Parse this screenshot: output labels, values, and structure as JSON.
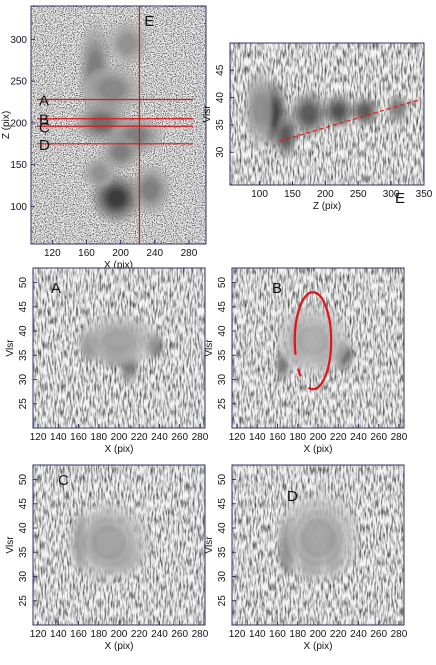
{
  "figure": {
    "panels": [
      {
        "id": "map",
        "type": "heatmap",
        "xlabel": "X (pix)",
        "ylabel": "Z (pix)",
        "xticks": [
          120,
          160,
          200,
          240,
          280
        ],
        "yticks": [
          100,
          150,
          200,
          250,
          300
        ],
        "xlim": [
          95,
          300
        ],
        "ylim": [
          55,
          340
        ],
        "cut_labels": [
          {
            "text": "A",
            "z": 228
          },
          {
            "text": "B",
            "z": 205
          },
          {
            "text": "C",
            "z": 196
          },
          {
            "text": "D",
            "z": 175
          }
        ],
        "vertical_cut": {
          "text": "E",
          "x": 222
        },
        "blobs": [
          {
            "x": 170,
            "y": 265,
            "rx": 16,
            "ry": 55,
            "v": 0.6
          },
          {
            "x": 208,
            "y": 295,
            "rx": 22,
            "ry": 26,
            "v": 0.5
          },
          {
            "x": 190,
            "y": 240,
            "rx": 35,
            "ry": 28,
            "v": 0.55
          },
          {
            "x": 178,
            "y": 200,
            "rx": 30,
            "ry": 22,
            "v": 0.7
          },
          {
            "x": 218,
            "y": 185,
            "rx": 30,
            "ry": 20,
            "v": 0.6
          },
          {
            "x": 200,
            "y": 165,
            "rx": 22,
            "ry": 20,
            "v": 0.6
          },
          {
            "x": 195,
            "y": 110,
            "rx": 28,
            "ry": 28,
            "v": 0.95
          },
          {
            "x": 235,
            "y": 120,
            "rx": 22,
            "ry": 28,
            "v": 0.6
          },
          {
            "x": 175,
            "y": 140,
            "rx": 18,
            "ry": 18,
            "v": 0.5
          }
        ]
      },
      {
        "id": "E",
        "type": "heatmap",
        "label": "E",
        "xlabel": "Z (pix)",
        "ylabel": "Vlsr",
        "xticks": [
          100,
          150,
          200,
          250,
          300,
          350
        ],
        "yticks": [
          30,
          35,
          40,
          45
        ],
        "xlim": [
          55,
          350
        ],
        "ylim": [
          24,
          50
        ],
        "fit_line": {
          "x": [
            130,
            340
          ],
          "y": [
            32,
            39.5
          ]
        },
        "blobs": [
          {
            "x": 120,
            "y": 37,
            "rx": 22,
            "ry": 6,
            "v": 0.95
          },
          {
            "x": 140,
            "y": 33,
            "rx": 15,
            "ry": 4,
            "v": 0.8
          },
          {
            "x": 175,
            "y": 37,
            "rx": 28,
            "ry": 4,
            "v": 0.8
          },
          {
            "x": 220,
            "y": 37.5,
            "rx": 22,
            "ry": 3,
            "v": 0.85
          },
          {
            "x": 260,
            "y": 37.5,
            "rx": 20,
            "ry": 2.5,
            "v": 0.8
          },
          {
            "x": 310,
            "y": 38,
            "rx": 14,
            "ry": 2.5,
            "v": 0.6
          },
          {
            "x": 100,
            "y": 38,
            "rx": 20,
            "ry": 7,
            "v": 0.5
          }
        ]
      },
      {
        "id": "A",
        "type": "heatmap",
        "label": "A",
        "xlabel": "X (pix)",
        "ylabel": "Vlsr",
        "xticks": [
          120,
          140,
          160,
          180,
          200,
          220,
          240,
          260,
          280
        ],
        "yticks": [
          25,
          30,
          35,
          40,
          45,
          50
        ],
        "xlim": [
          115,
          285
        ],
        "ylim": [
          20,
          53
        ],
        "blobs": [
          {
            "x": 172,
            "y": 37,
            "rx": 10,
            "ry": 3,
            "v": 0.9
          },
          {
            "x": 195,
            "y": 36,
            "rx": 14,
            "ry": 3.5,
            "v": 0.75
          },
          {
            "x": 210,
            "y": 33,
            "rx": 8,
            "ry": 4,
            "v": 0.6
          },
          {
            "x": 235,
            "y": 37,
            "rx": 8,
            "ry": 2.5,
            "v": 0.85
          },
          {
            "x": 200,
            "y": 38,
            "rx": 40,
            "ry": 5,
            "v": 0.4
          }
        ]
      },
      {
        "id": "B",
        "type": "heatmap",
        "label": "B",
        "xlabel": "X (pix)",
        "ylabel": "Vlsr",
        "xticks": [
          120,
          140,
          160,
          180,
          200,
          220,
          240,
          260,
          280
        ],
        "yticks": [
          25,
          30,
          35,
          40,
          45,
          50
        ],
        "xlim": [
          115,
          285
        ],
        "ylim": [
          20,
          53
        ],
        "ellipse": {
          "cx": 195,
          "cy": 38,
          "rx": 18,
          "ry": 10
        },
        "blobs": [
          {
            "x": 180,
            "y": 38,
            "rx": 8,
            "ry": 5,
            "v": 0.95
          },
          {
            "x": 205,
            "y": 36,
            "rx": 7,
            "ry": 4,
            "v": 0.7
          },
          {
            "x": 225,
            "y": 35,
            "rx": 10,
            "ry": 3,
            "v": 0.75
          },
          {
            "x": 165,
            "y": 33,
            "rx": 6,
            "ry": 3,
            "v": 0.6
          },
          {
            "x": 195,
            "y": 38,
            "rx": 35,
            "ry": 7,
            "v": 0.35
          }
        ]
      },
      {
        "id": "C",
        "type": "heatmap",
        "label": "C",
        "xlabel": "X (pix)",
        "ylabel": "Vlsr",
        "xticks": [
          120,
          140,
          160,
          180,
          200,
          220,
          240,
          260,
          280
        ],
        "yticks": [
          25,
          30,
          35,
          40,
          45,
          50
        ],
        "xlim": [
          115,
          285
        ],
        "ylim": [
          20,
          53
        ],
        "blobs": [
          {
            "x": 162,
            "y": 37,
            "rx": 6,
            "ry": 6,
            "v": 0.9
          },
          {
            "x": 178,
            "y": 37,
            "rx": 6,
            "ry": 5,
            "v": 0.85
          },
          {
            "x": 200,
            "y": 34,
            "rx": 20,
            "ry": 3,
            "v": 0.8
          },
          {
            "x": 185,
            "y": 40,
            "rx": 10,
            "ry": 3,
            "v": 0.6
          },
          {
            "x": 190,
            "y": 37,
            "rx": 40,
            "ry": 8,
            "v": 0.4
          }
        ]
      },
      {
        "id": "D",
        "type": "heatmap",
        "label": "D",
        "xlabel": "X (pix)",
        "ylabel": "Vlsr",
        "xticks": [
          120,
          140,
          160,
          180,
          200,
          220,
          240,
          260,
          280
        ],
        "yticks": [
          25,
          30,
          35,
          40,
          45,
          50
        ],
        "xlim": [
          115,
          285
        ],
        "ylim": [
          20,
          53
        ],
        "blobs": [
          {
            "x": 170,
            "y": 36,
            "rx": 8,
            "ry": 6,
            "v": 0.9
          },
          {
            "x": 188,
            "y": 35,
            "rx": 5,
            "ry": 5,
            "v": 0.85
          },
          {
            "x": 215,
            "y": 36,
            "rx": 8,
            "ry": 6,
            "v": 0.9
          },
          {
            "x": 195,
            "y": 33,
            "rx": 8,
            "ry": 3,
            "v": 0.7
          },
          {
            "x": 200,
            "y": 38,
            "rx": 40,
            "ry": 9,
            "v": 0.4
          }
        ]
      }
    ],
    "colors": {
      "ink": "#111111",
      "cut": "#e0141a",
      "frame": "#333366"
    }
  }
}
